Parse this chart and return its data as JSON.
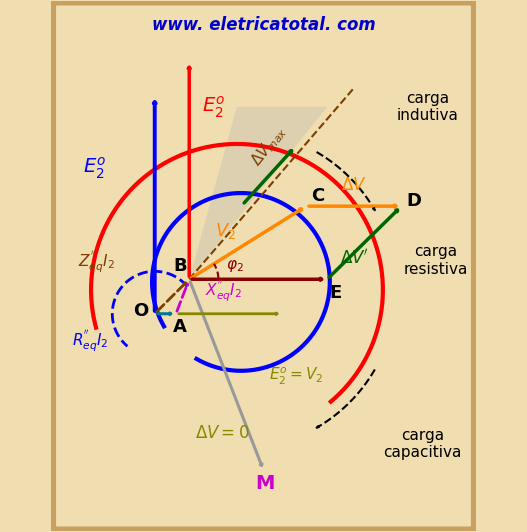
{
  "bg_color": "#f0ddb0",
  "border_color": "#c8a060",
  "title": "www. eletricatotal. com",
  "title_color": "#0000cc",
  "phi2_deg": 32,
  "colors": {
    "red": "#ff0000",
    "blue": "#0000ff",
    "orange": "#ff8800",
    "green_dark": "#006600",
    "olive": "#888800",
    "dark_red": "#880000",
    "brown": "#7B3F00",
    "magenta": "#cc00cc",
    "teal": "#007799",
    "gray": "#999999",
    "black": "#000000"
  },
  "note_carga_indutiva": "carga\nindutiva",
  "note_carga_resistiva": "carga\nresistiva",
  "note_carga_capacitiva": "carga\ncapacitiva"
}
